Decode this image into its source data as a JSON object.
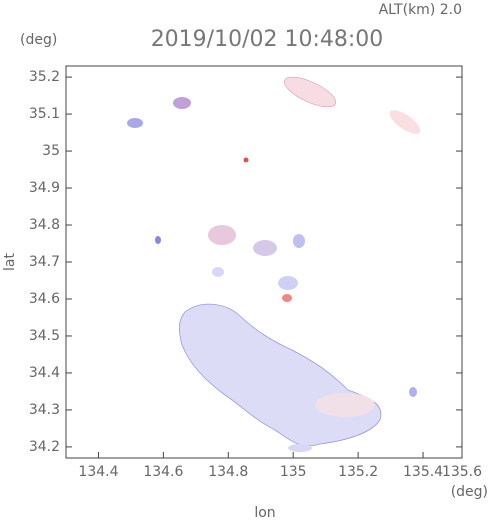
{
  "chart_data": {
    "type": "map",
    "title": "2019/10/02 10:48:00",
    "annotation": "ALT(km) 2.0",
    "y_unit": "(deg)",
    "x_unit": "(deg)",
    "xlabel": "lon",
    "ylabel": "lat",
    "xlim": [
      134.3,
      135.52
    ],
    "ylim": [
      34.17,
      35.23
    ],
    "xticks": [
      134.4,
      134.6,
      134.8,
      135.0,
      135.2,
      135.4,
      135.6
    ],
    "yticks": [
      34.2,
      34.3,
      34.4,
      34.5,
      34.6,
      34.7,
      34.8,
      34.9,
      35.0,
      35.1,
      35.2
    ]
  }
}
